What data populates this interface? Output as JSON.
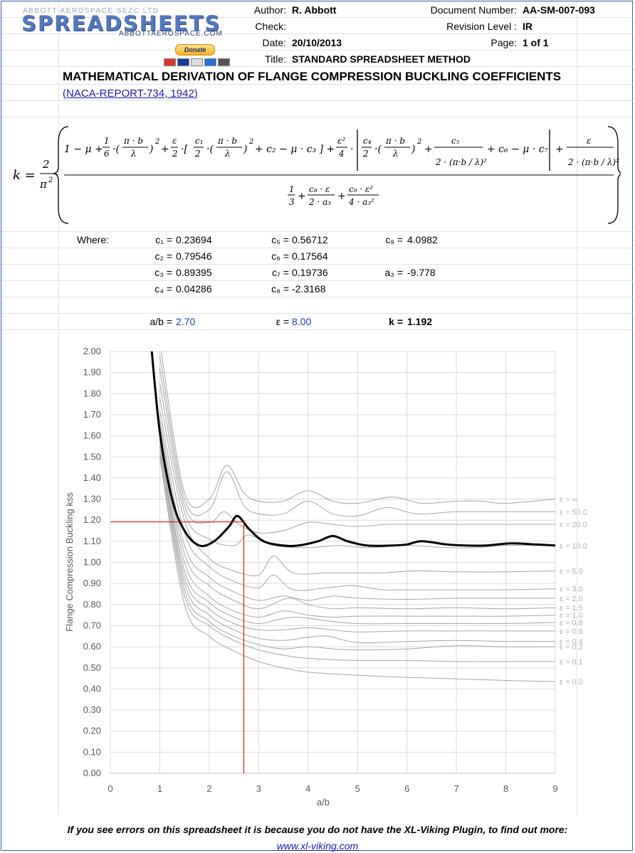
{
  "header": {
    "logo_top": "ABBOTT AEROSPACE SEZC LTD",
    "logo_main": "SPREADSHEETS",
    "logo_sub": "ABBOTTAEROSPACE.COM",
    "donate_label": "Donate",
    "author_label": "Author:",
    "author": "R. Abbott",
    "check_label": "Check:",
    "check": "",
    "date_label": "Date:",
    "date": "20/10/2013",
    "title_label": "Title:",
    "title": "STANDARD SPREADSHEET METHOD",
    "docnum_label": "Document Number:",
    "docnum": "AA-SM-007-093",
    "rev_label": "Revision Level :",
    "rev": "IR",
    "page_label": "Page:",
    "page": "1 of 1"
  },
  "main": {
    "title": "MATHEMATICAL DERIVATION OF FLANGE COMPRESSION BUCKLING COEFFICIENTS",
    "reference": "(NACA-REPORT-734, 1942)"
  },
  "coefficients": {
    "where_label": "Where:",
    "c1": {
      "label": "c₁ =",
      "value": "0.23694"
    },
    "c2": {
      "label": "c₂ =",
      "value": "0.79546"
    },
    "c3": {
      "label": "c₃ =",
      "value": "0.89395"
    },
    "c4": {
      "label": "c₄ =",
      "value": "0.04286"
    },
    "c5": {
      "label": "c₅ =",
      "value": "0.56712"
    },
    "c6": {
      "label": "c₆ =",
      "value": "0.17564"
    },
    "c7": {
      "label": "c₇ =",
      "value": "0.19736"
    },
    "c8": {
      "label": "c₈ =",
      "value": "-2.3168"
    },
    "c9": {
      "label": "c₉ =",
      "value": "4.0982"
    },
    "a3": {
      "label": "a₃ =",
      "value": "-9.778"
    }
  },
  "inputs": {
    "ab_label": "a/b =",
    "ab_value": "2.70",
    "eps_label": "ε =",
    "eps_value": "8.00",
    "k_label": "k =",
    "k_value": "1.192"
  },
  "chart_data": {
    "type": "line",
    "title": "",
    "xlabel": "a/b",
    "ylabel": "Flange Compression Buckling kss",
    "xlim": [
      0,
      9
    ],
    "ylim": [
      0,
      2
    ],
    "x_ticks": [
      "0",
      "1",
      "2",
      "3",
      "4",
      "5",
      "6",
      "7",
      "8",
      "9"
    ],
    "y_ticks": [
      "0.00",
      "0.10",
      "0.20",
      "0.30",
      "0.40",
      "0.50",
      "0.60",
      "0.70",
      "0.80",
      "0.90",
      "1.00",
      "1.10",
      "1.20",
      "1.30",
      "1.40",
      "1.50",
      "1.60",
      "1.70",
      "1.80",
      "1.90",
      "2.00"
    ],
    "grid": true,
    "series_color": "#a6a6a6",
    "highlight_color": "#000000",
    "marker_color": "#cc0000",
    "series": [
      {
        "name": "ε = 0.0",
        "x": [
          1,
          1.5,
          2,
          2.5,
          3,
          3.5,
          4,
          5,
          6,
          7,
          8,
          9
        ],
        "values": [
          1.5,
          0.8,
          0.65,
          0.58,
          0.53,
          0.5,
          0.48,
          0.465,
          0.455,
          0.448,
          0.44,
          0.435
        ]
      },
      {
        "name": "ε = 0.1",
        "x": [
          1,
          1.5,
          2,
          2.5,
          3,
          3.5,
          4,
          5,
          6,
          7,
          8,
          9
        ],
        "values": [
          1.52,
          0.84,
          0.7,
          0.63,
          0.585,
          0.56,
          0.545,
          0.535,
          0.535,
          0.53,
          0.53,
          0.53
        ]
      },
      {
        "name": "ε = 0.3",
        "x": [
          1,
          1.5,
          2,
          2.5,
          3,
          3.5,
          4,
          4.5,
          5,
          6,
          7,
          8,
          9
        ],
        "values": [
          1.55,
          0.87,
          0.72,
          0.65,
          0.61,
          0.59,
          0.6,
          0.59,
          0.585,
          0.59,
          0.605,
          0.6,
          0.6
        ]
      },
      {
        "name": "ε = 0.4",
        "x": [
          1,
          1.5,
          2,
          2.5,
          3,
          3.5,
          4,
          4.4,
          5,
          6,
          7,
          8,
          9
        ],
        "values": [
          1.56,
          0.9,
          0.75,
          0.68,
          0.64,
          0.63,
          0.645,
          0.65,
          0.62,
          0.625,
          0.63,
          0.625,
          0.625
        ]
      },
      {
        "name": "ε = 0.6",
        "x": [
          1,
          1.5,
          2,
          2.5,
          3,
          3.5,
          4,
          4.5,
          5,
          6,
          7,
          8,
          9
        ],
        "values": [
          1.58,
          0.93,
          0.78,
          0.71,
          0.68,
          0.68,
          0.69,
          0.68,
          0.67,
          0.675,
          0.675,
          0.675,
          0.675
        ]
      },
      {
        "name": "ε = 0.8",
        "x": [
          1,
          1.5,
          2,
          2.5,
          3,
          3.4,
          3.8,
          4.5,
          5,
          6,
          7,
          8,
          9
        ],
        "values": [
          1.6,
          0.96,
          0.81,
          0.74,
          0.71,
          0.73,
          0.74,
          0.72,
          0.71,
          0.71,
          0.71,
          0.71,
          0.715
        ]
      },
      {
        "name": "ε = 1.0",
        "x": [
          1,
          1.5,
          2,
          2.5,
          3,
          3.5,
          4,
          4.5,
          5,
          6,
          7,
          8,
          9
        ],
        "values": [
          1.62,
          1.0,
          0.84,
          0.77,
          0.74,
          0.77,
          0.75,
          0.74,
          0.745,
          0.745,
          0.745,
          0.745,
          0.75
        ]
      },
      {
        "name": "ε = 1.5",
        "x": [
          1,
          1.5,
          2,
          2.5,
          3,
          3.6,
          4,
          4.5,
          5,
          6,
          7,
          8,
          9
        ],
        "values": [
          1.65,
          1.04,
          0.89,
          0.82,
          0.78,
          0.83,
          0.8,
          0.78,
          0.785,
          0.78,
          0.785,
          0.78,
          0.785
        ]
      },
      {
        "name": "ε = 2.0",
        "x": [
          1,
          1.5,
          2,
          2.5,
          3,
          3.5,
          4,
          4.5,
          5,
          6,
          7,
          8,
          9
        ],
        "values": [
          1.68,
          1.08,
          0.93,
          0.86,
          0.82,
          0.84,
          0.82,
          0.84,
          0.83,
          0.825,
          0.83,
          0.83,
          0.83
        ]
      },
      {
        "name": "ε = 3.0",
        "x": [
          1,
          1.5,
          2,
          2.5,
          3,
          3.3,
          3.7,
          4.4,
          4.9,
          5.5,
          6,
          7,
          8,
          9
        ],
        "values": [
          1.72,
          1.14,
          0.98,
          0.91,
          0.88,
          0.94,
          0.87,
          0.88,
          0.89,
          0.87,
          0.87,
          0.87,
          0.87,
          0.875
        ]
      },
      {
        "name": "ε = 5.0",
        "x": [
          1,
          1.5,
          2,
          2.5,
          3,
          3.3,
          3.7,
          4.4,
          5,
          5.5,
          6.2,
          7,
          8,
          9
        ],
        "values": [
          1.78,
          1.2,
          1.02,
          0.96,
          0.94,
          1.03,
          0.95,
          0.95,
          0.95,
          0.95,
          0.96,
          0.955,
          0.955,
          0.96
        ]
      },
      {
        "name": "ε = 10.0",
        "x": [
          1,
          1.5,
          2,
          2.5,
          2.8,
          3.3,
          4,
          4.6,
          5.2,
          6,
          6.8,
          7.4,
          8,
          9
        ],
        "values": [
          1.85,
          1.24,
          1.11,
          1.08,
          1.13,
          1.08,
          1.07,
          1.08,
          1.07,
          1.08,
          1.07,
          1.07,
          1.08,
          1.08
        ]
      },
      {
        "name": "ε = 20.0",
        "x": [
          1,
          1.5,
          2,
          2.3,
          2.6,
          3,
          3.5,
          4,
          4.5,
          5,
          5.6,
          6.2,
          7,
          8,
          9
        ],
        "values": [
          1.92,
          1.27,
          1.19,
          1.24,
          1.18,
          1.14,
          1.15,
          1.19,
          1.18,
          1.17,
          1.18,
          1.18,
          1.18,
          1.18,
          1.18
        ]
      },
      {
        "name": "ε = 50.0",
        "x": [
          1,
          1.5,
          2,
          2.35,
          2.7,
          3,
          3.5,
          4,
          4.5,
          5,
          5.6,
          6.2,
          7,
          8,
          9
        ],
        "values": [
          1.98,
          1.3,
          1.25,
          1.43,
          1.27,
          1.23,
          1.23,
          1.29,
          1.23,
          1.22,
          1.26,
          1.23,
          1.24,
          1.24,
          1.24
        ]
      },
      {
        "name": "ε = ∞",
        "x": [
          1,
          1.5,
          2,
          2.35,
          2.7,
          3,
          3.5,
          4,
          4.5,
          5,
          5.7,
          6.3,
          7,
          7.5,
          8,
          9
        ],
        "values": [
          2.05,
          1.33,
          1.3,
          1.46,
          1.33,
          1.29,
          1.29,
          1.34,
          1.29,
          1.28,
          1.31,
          1.28,
          1.29,
          1.29,
          1.28,
          1.3
        ]
      }
    ],
    "highlight_series": {
      "x": [
        0.8,
        1,
        1.25,
        1.5,
        1.8,
        2.1,
        2.4,
        2.57,
        2.8,
        3.1,
        3.5,
        3.8,
        4.2,
        4.5,
        4.8,
        5.2,
        5.7,
        6.0,
        6.3,
        6.8,
        7.2,
        7.6,
        8.1,
        8.6,
        9
      ],
      "values": [
        2.1,
        1.62,
        1.3,
        1.15,
        1.08,
        1.1,
        1.17,
        1.22,
        1.16,
        1.1,
        1.08,
        1.08,
        1.1,
        1.125,
        1.1,
        1.08,
        1.08,
        1.085,
        1.1,
        1.085,
        1.08,
        1.08,
        1.09,
        1.085,
        1.08
      ]
    },
    "marker": {
      "x": 2.7,
      "y": 1.192
    }
  },
  "footer": {
    "note": "If you see errors on this spreadsheet it is because you do not have the XL-Viking Plugin, to find out more:",
    "link": "www.xl-viking.com"
  }
}
